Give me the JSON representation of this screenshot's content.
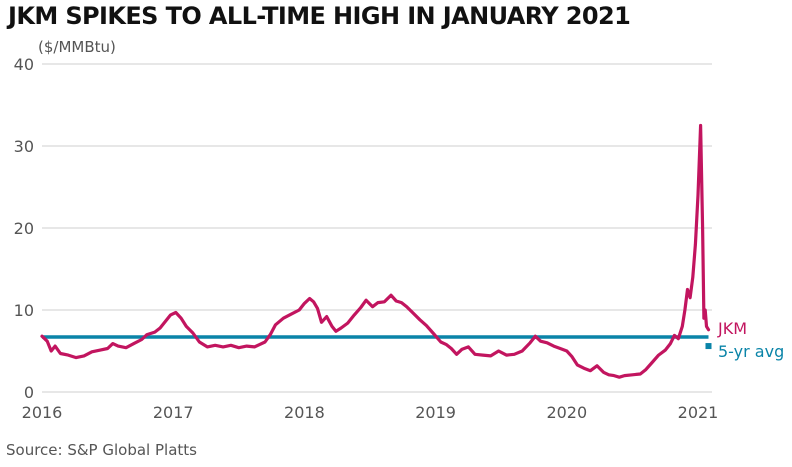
{
  "title": "JKM SPIKES TO ALL-TIME HIGH IN JANUARY 2021",
  "source": "Source: S&P Global Platts",
  "chart_data": {
    "type": "line",
    "title": "JKM SPIKES TO ALL-TIME HIGH IN JANUARY 2021",
    "ylabel": "($/MMBtu)",
    "xlabel": "",
    "ylim": [
      0,
      40
    ],
    "xlim": [
      2016,
      2021.1
    ],
    "grid": "horizontal",
    "y_ticks": [
      0,
      10,
      20,
      30,
      40
    ],
    "x_ticks": [
      2016,
      2017,
      2018,
      2019,
      2020,
      2021
    ],
    "colors": {
      "jkm": "#c2155f",
      "avg": "#0a84a8",
      "grid": "#cfcfcf"
    },
    "series": [
      {
        "name": "JKM",
        "points": [
          [
            2016.0,
            6.8
          ],
          [
            2016.04,
            6.2
          ],
          [
            2016.07,
            5.0
          ],
          [
            2016.1,
            5.6
          ],
          [
            2016.14,
            4.7
          ],
          [
            2016.2,
            4.5
          ],
          [
            2016.26,
            4.2
          ],
          [
            2016.32,
            4.4
          ],
          [
            2016.38,
            4.9
          ],
          [
            2016.44,
            5.1
          ],
          [
            2016.5,
            5.3
          ],
          [
            2016.54,
            5.9
          ],
          [
            2016.58,
            5.6
          ],
          [
            2016.64,
            5.4
          ],
          [
            2016.7,
            5.9
          ],
          [
            2016.76,
            6.4
          ],
          [
            2016.8,
            7.0
          ],
          [
            2016.86,
            7.3
          ],
          [
            2016.9,
            7.8
          ],
          [
            2016.94,
            8.6
          ],
          [
            2016.98,
            9.4
          ],
          [
            2017.02,
            9.7
          ],
          [
            2017.06,
            9.0
          ],
          [
            2017.1,
            8.0
          ],
          [
            2017.15,
            7.2
          ],
          [
            2017.2,
            6.1
          ],
          [
            2017.26,
            5.5
          ],
          [
            2017.32,
            5.7
          ],
          [
            2017.38,
            5.5
          ],
          [
            2017.44,
            5.7
          ],
          [
            2017.5,
            5.4
          ],
          [
            2017.56,
            5.6
          ],
          [
            2017.62,
            5.5
          ],
          [
            2017.66,
            5.8
          ],
          [
            2017.7,
            6.1
          ],
          [
            2017.74,
            7.0
          ],
          [
            2017.78,
            8.2
          ],
          [
            2017.84,
            9.0
          ],
          [
            2017.9,
            9.5
          ],
          [
            2017.96,
            10.0
          ],
          [
            2018.0,
            10.8
          ],
          [
            2018.04,
            11.4
          ],
          [
            2018.07,
            11.0
          ],
          [
            2018.1,
            10.2
          ],
          [
            2018.13,
            8.5
          ],
          [
            2018.17,
            9.2
          ],
          [
            2018.21,
            8.0
          ],
          [
            2018.24,
            7.4
          ],
          [
            2018.28,
            7.8
          ],
          [
            2018.33,
            8.4
          ],
          [
            2018.38,
            9.4
          ],
          [
            2018.43,
            10.3
          ],
          [
            2018.47,
            11.2
          ],
          [
            2018.52,
            10.4
          ],
          [
            2018.56,
            10.9
          ],
          [
            2018.61,
            11.0
          ],
          [
            2018.66,
            11.8
          ],
          [
            2018.7,
            11.1
          ],
          [
            2018.74,
            10.9
          ],
          [
            2018.78,
            10.4
          ],
          [
            2018.83,
            9.6
          ],
          [
            2018.88,
            8.8
          ],
          [
            2018.93,
            8.1
          ],
          [
            2018.98,
            7.2
          ],
          [
            2019.04,
            6.1
          ],
          [
            2019.08,
            5.8
          ],
          [
            2019.12,
            5.3
          ],
          [
            2019.16,
            4.6
          ],
          [
            2019.2,
            5.2
          ],
          [
            2019.25,
            5.5
          ],
          [
            2019.3,
            4.6
          ],
          [
            2019.36,
            4.5
          ],
          [
            2019.42,
            4.4
          ],
          [
            2019.48,
            5.0
          ],
          [
            2019.54,
            4.5
          ],
          [
            2019.6,
            4.6
          ],
          [
            2019.66,
            5.0
          ],
          [
            2019.72,
            6.0
          ],
          [
            2019.76,
            6.8
          ],
          [
            2019.8,
            6.2
          ],
          [
            2019.85,
            6.0
          ],
          [
            2019.9,
            5.6
          ],
          [
            2019.95,
            5.3
          ],
          [
            2020.0,
            5.0
          ],
          [
            2020.04,
            4.3
          ],
          [
            2020.08,
            3.3
          ],
          [
            2020.13,
            2.9
          ],
          [
            2020.18,
            2.6
          ],
          [
            2020.23,
            3.2
          ],
          [
            2020.28,
            2.4
          ],
          [
            2020.32,
            2.1
          ],
          [
            2020.36,
            2.0
          ],
          [
            2020.4,
            1.8
          ],
          [
            2020.44,
            2.0
          ],
          [
            2020.5,
            2.1
          ],
          [
            2020.56,
            2.2
          ],
          [
            2020.6,
            2.7
          ],
          [
            2020.65,
            3.6
          ],
          [
            2020.7,
            4.5
          ],
          [
            2020.75,
            5.1
          ],
          [
            2020.79,
            5.9
          ],
          [
            2020.82,
            6.9
          ],
          [
            2020.85,
            6.5
          ],
          [
            2020.88,
            8.0
          ],
          [
            2020.9,
            10.0
          ],
          [
            2020.92,
            12.5
          ],
          [
            2020.94,
            11.5
          ],
          [
            2020.96,
            14.0
          ],
          [
            2020.98,
            18.0
          ],
          [
            2021.0,
            24.0
          ],
          [
            2021.02,
            32.5
          ],
          [
            2021.035,
            20.0
          ],
          [
            2021.045,
            9.0
          ],
          [
            2021.055,
            10.0
          ],
          [
            2021.065,
            8.0
          ],
          [
            2021.08,
            7.6
          ]
        ]
      },
      {
        "name": "5-yr avg",
        "constant": 6.7,
        "x_range": [
          2016.0,
          2021.08
        ]
      }
    ],
    "legend": [
      {
        "label": "JKM",
        "color": "#c2155f"
      },
      {
        "label": "5-yr avg",
        "color": "#0a84a8"
      }
    ]
  }
}
